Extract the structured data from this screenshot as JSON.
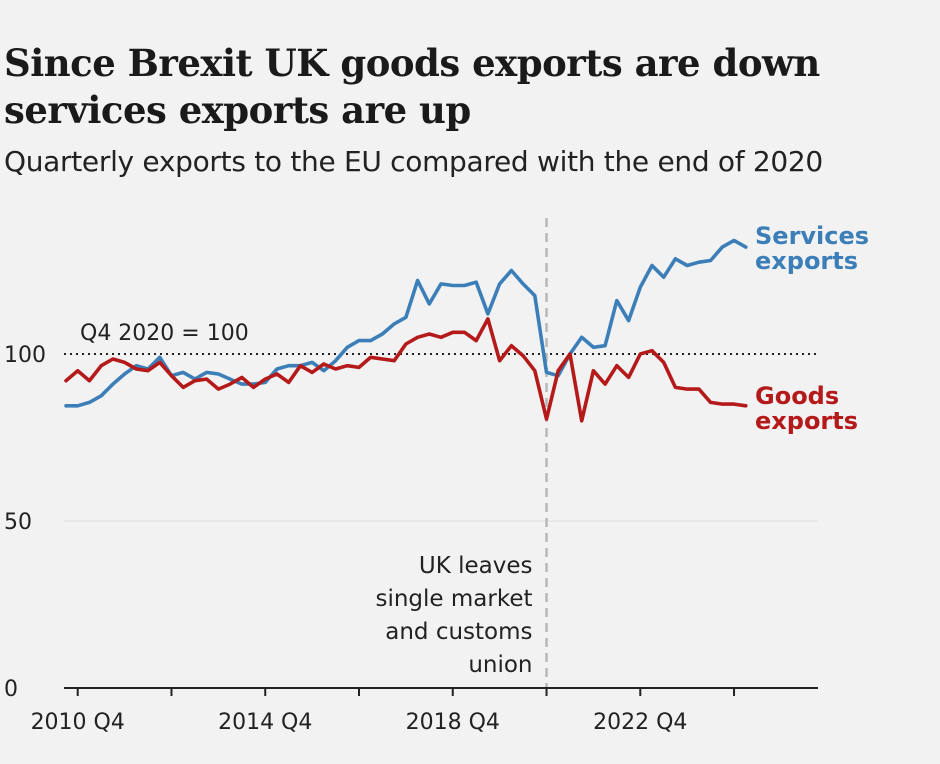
{
  "title_line1": "Since Brexit UK goods exports are down",
  "title_line2": "services exports are up",
  "subtitle": "Quarterly exports to the EU compared with the end of 2020",
  "chart_data": {
    "type": "line",
    "x_start": "2010 Q3",
    "x_step": "quarter",
    "ylim": [
      0,
      140
    ],
    "yticks": [
      0,
      50,
      100
    ],
    "ytick_labels": [
      "0",
      "50",
      "100"
    ],
    "xtick_labels": [
      "2010 Q4",
      "2014 Q4",
      "2018 Q4",
      "2022 Q4"
    ],
    "xtick_positions": [
      "2010 Q4",
      "2014 Q4",
      "2018 Q4",
      "2022 Q4"
    ],
    "grid": true,
    "reference_line": {
      "value": 100,
      "label": "Q4 2020 = 100",
      "style": "dotted"
    },
    "vertical_marker": {
      "x": "2020 Q4",
      "style": "dashed",
      "label_lines": [
        "UK leaves",
        "single market",
        "and customs",
        "union"
      ]
    },
    "series": [
      {
        "name": "Services exports",
        "label_lines": [
          "Services",
          "exports"
        ],
        "color": "#3c7fb8",
        "values": [
          84.5,
          84.5,
          85.5,
          87.5,
          91,
          94,
          96.5,
          95.5,
          99,
          93.5,
          94.5,
          92.5,
          94.5,
          94,
          92.5,
          91,
          91,
          91.5,
          95.5,
          96.5,
          96.5,
          97.5,
          95,
          98,
          102,
          104,
          104,
          106,
          109,
          111,
          122,
          115,
          121,
          120.5,
          120.5,
          121.5,
          112,
          121,
          125,
          121,
          117.5,
          94.5,
          93.5,
          100,
          105,
          102,
          102.5,
          116,
          110,
          120,
          126.5,
          123,
          128.5,
          126.5,
          127.5,
          128,
          132,
          134,
          132
        ]
      },
      {
        "name": "Goods exports",
        "label_lines": [
          "Goods",
          "exports"
        ],
        "color": "#b51a1a",
        "values": [
          92,
          95,
          92,
          96.5,
          98.5,
          97.5,
          95.5,
          95,
          97.5,
          93.5,
          90,
          92,
          92.5,
          89.5,
          91,
          93,
          90,
          92.5,
          94,
          91.5,
          96.5,
          94.5,
          97,
          95.5,
          96.5,
          96,
          99,
          98.5,
          98,
          103,
          105,
          106,
          105,
          106.5,
          106.5,
          104,
          110.5,
          98,
          102.5,
          99.5,
          95,
          80.5,
          95,
          100,
          80,
          95,
          91,
          96.5,
          93,
          100,
          101,
          97.5,
          90,
          89.5,
          89.5,
          85.5,
          85,
          85,
          84.5
        ]
      }
    ]
  }
}
